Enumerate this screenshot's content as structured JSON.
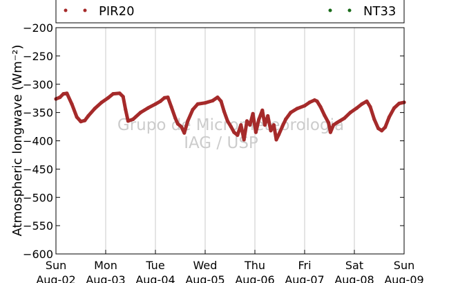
{
  "chart_data": {
    "type": "scatter",
    "ylabel": "Atmospheric longwave (Wm⁻²)",
    "ylim": [
      -600,
      -200
    ],
    "yticks": [
      -200,
      -250,
      -300,
      -350,
      -400,
      -450,
      -500,
      -550,
      -600
    ],
    "xlim": [
      0,
      7
    ],
    "x_ticks": [
      {
        "day": "Sun",
        "date": "Aug-02"
      },
      {
        "day": "Mon",
        "date": "Aug-03"
      },
      {
        "day": "Tue",
        "date": "Aug-04"
      },
      {
        "day": "Wed",
        "date": "Aug-05"
      },
      {
        "day": "Thu",
        "date": "Aug-06"
      },
      {
        "day": "Fri",
        "date": "Aug-07"
      },
      {
        "day": "Sat",
        "date": "Aug-08"
      },
      {
        "day": "Sun",
        "date": "Aug-09"
      }
    ],
    "grid": "vertical",
    "legend": {
      "placement": "top",
      "entries": [
        {
          "name": "PIR20",
          "color": "#a52a2a"
        },
        {
          "name": "NT33",
          "color": "#1a6b1a"
        }
      ]
    },
    "watermark": [
      "Grupo de Micrometeorologia",
      "IAG / USP"
    ],
    "series": [
      {
        "name": "PIR20",
        "color": "#a52a2a",
        "points": [
          [
            0.0,
            -326
          ],
          [
            0.08,
            -323
          ],
          [
            0.15,
            -317
          ],
          [
            0.22,
            -316
          ],
          [
            0.32,
            -335
          ],
          [
            0.42,
            -358
          ],
          [
            0.5,
            -366
          ],
          [
            0.58,
            -364
          ],
          [
            0.65,
            -356
          ],
          [
            0.78,
            -343
          ],
          [
            0.92,
            -332
          ],
          [
            1.05,
            -324
          ],
          [
            1.15,
            -317
          ],
          [
            1.28,
            -316
          ],
          [
            1.35,
            -322
          ],
          [
            1.4,
            -345
          ],
          [
            1.45,
            -365
          ],
          [
            1.55,
            -362
          ],
          [
            1.7,
            -350
          ],
          [
            1.85,
            -342
          ],
          [
            2.0,
            -335
          ],
          [
            2.1,
            -330
          ],
          [
            2.18,
            -324
          ],
          [
            2.25,
            -323
          ],
          [
            2.32,
            -340
          ],
          [
            2.4,
            -360
          ],
          [
            2.45,
            -370
          ],
          [
            2.52,
            -375
          ],
          [
            2.58,
            -386
          ],
          [
            2.65,
            -365
          ],
          [
            2.75,
            -345
          ],
          [
            2.85,
            -335
          ],
          [
            3.0,
            -333
          ],
          [
            3.15,
            -329
          ],
          [
            3.25,
            -323
          ],
          [
            3.32,
            -330
          ],
          [
            3.38,
            -348
          ],
          [
            3.45,
            -365
          ],
          [
            3.52,
            -375
          ],
          [
            3.58,
            -385
          ],
          [
            3.65,
            -390
          ],
          [
            3.72,
            -372
          ],
          [
            3.78,
            -398
          ],
          [
            3.84,
            -365
          ],
          [
            3.9,
            -372
          ],
          [
            3.96,
            -352
          ],
          [
            4.02,
            -385
          ],
          [
            4.08,
            -362
          ],
          [
            4.15,
            -346
          ],
          [
            4.2,
            -372
          ],
          [
            4.26,
            -356
          ],
          [
            4.32,
            -382
          ],
          [
            4.38,
            -372
          ],
          [
            4.43,
            -398
          ],
          [
            4.48,
            -389
          ],
          [
            4.55,
            -375
          ],
          [
            4.62,
            -362
          ],
          [
            4.72,
            -350
          ],
          [
            4.85,
            -343
          ],
          [
            5.0,
            -338
          ],
          [
            5.1,
            -332
          ],
          [
            5.2,
            -328
          ],
          [
            5.25,
            -330
          ],
          [
            5.32,
            -340
          ],
          [
            5.4,
            -355
          ],
          [
            5.48,
            -368
          ],
          [
            5.52,
            -385
          ],
          [
            5.58,
            -372
          ],
          [
            5.65,
            -368
          ],
          [
            5.8,
            -360
          ],
          [
            5.92,
            -350
          ],
          [
            6.05,
            -342
          ],
          [
            6.15,
            -335
          ],
          [
            6.25,
            -330
          ],
          [
            6.32,
            -340
          ],
          [
            6.4,
            -362
          ],
          [
            6.48,
            -378
          ],
          [
            6.55,
            -382
          ],
          [
            6.62,
            -376
          ],
          [
            6.7,
            -358
          ],
          [
            6.8,
            -342
          ],
          [
            6.9,
            -334
          ],
          [
            7.0,
            -332
          ]
        ]
      },
      {
        "name": "NT33",
        "color": "#1a6b1a",
        "points": []
      }
    ]
  }
}
